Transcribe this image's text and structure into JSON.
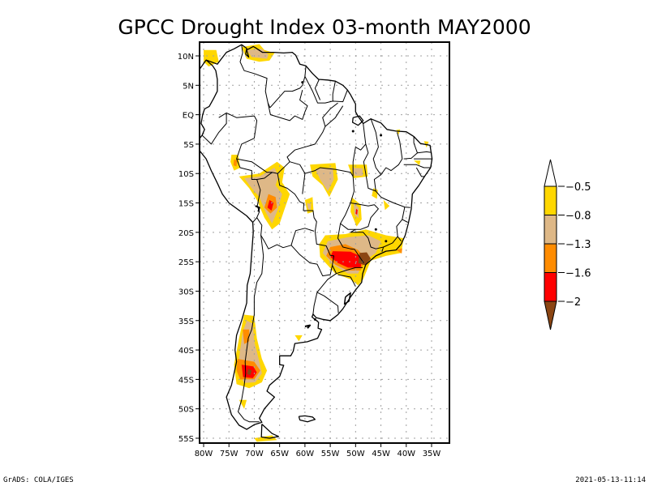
{
  "title": "GPCC Drought Index 03-month MAY2000",
  "footer": {
    "left": "GrADS: COLA/IGES",
    "right": "2021-05-13-11:14"
  },
  "map": {
    "region": "South America",
    "lon_range": [
      -81,
      -31
    ],
    "lat_range": [
      12.3,
      -56
    ],
    "lon_ticks": [
      {
        "value": -80,
        "label": "80W"
      },
      {
        "value": -75,
        "label": "75W"
      },
      {
        "value": -70,
        "label": "70W"
      },
      {
        "value": -65,
        "label": "65W"
      },
      {
        "value": -60,
        "label": "60W"
      },
      {
        "value": -55,
        "label": "55W"
      },
      {
        "value": -50,
        "label": "50W"
      },
      {
        "value": -45,
        "label": "45W"
      },
      {
        "value": -40,
        "label": "40W"
      },
      {
        "value": -35,
        "label": "35W"
      }
    ],
    "lat_ticks": [
      {
        "value": 10,
        "label": "10N"
      },
      {
        "value": 5,
        "label": "5N"
      },
      {
        "value": 0,
        "label": "EQ"
      },
      {
        "value": -5,
        "label": "5S"
      },
      {
        "value": -10,
        "label": "10S"
      },
      {
        "value": -15,
        "label": "15S"
      },
      {
        "value": -20,
        "label": "20S"
      },
      {
        "value": -25,
        "label": "25S"
      },
      {
        "value": -30,
        "label": "30S"
      },
      {
        "value": -35,
        "label": "35S"
      },
      {
        "value": -40,
        "label": "40S"
      },
      {
        "value": -45,
        "label": "45S"
      },
      {
        "value": -50,
        "label": "50S"
      },
      {
        "value": -55,
        "label": "55S"
      }
    ]
  },
  "legend": {
    "levels": [
      {
        "label": "-0.5",
        "color": "#ffd700"
      },
      {
        "label": "-0.8",
        "color": "#deb887"
      },
      {
        "label": "-1.3",
        "color": "#ff8c00"
      },
      {
        "label": "-1.6",
        "color": "#ff0000"
      },
      {
        "label": "-2",
        "color": "#8b4513"
      }
    ],
    "top_arrow_color": "#ffffff",
    "bottom_arrow_color": "#8b4513"
  },
  "colors": {
    "cat1": "#ffd700",
    "cat2": "#deb887",
    "cat3": "#ff8c00",
    "cat4": "#ff0000",
    "cat5": "#8b4513",
    "grid": "#a0a0a0",
    "coast": "#000000"
  }
}
